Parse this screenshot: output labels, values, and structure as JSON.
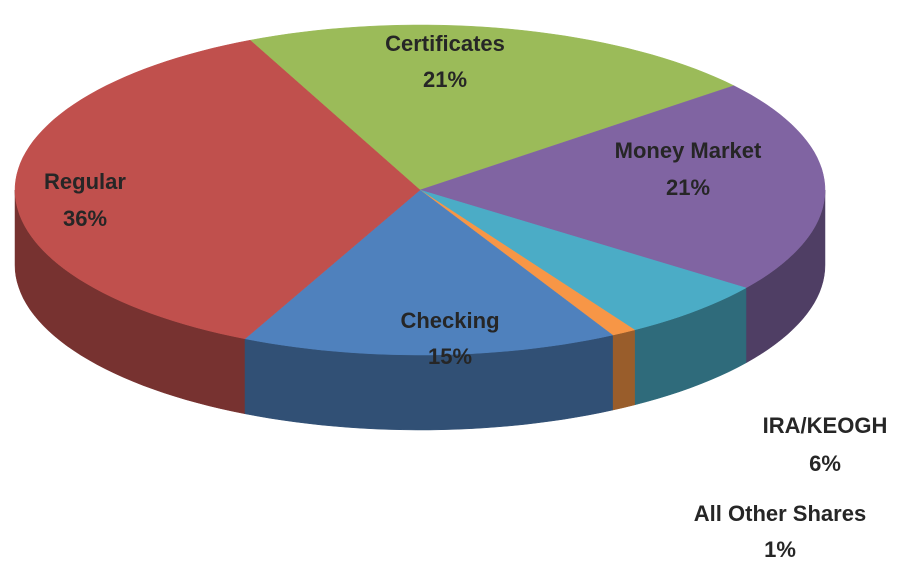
{
  "chart_data": {
    "type": "pie3d",
    "categories": [
      "Certificates",
      "Money Market",
      "IRA/KEOGH",
      "All Other Shares",
      "Checking",
      "Regular"
    ],
    "values": [
      21,
      21,
      6,
      1,
      15,
      36
    ],
    "value_labels": [
      "21%",
      "21%",
      "6%",
      "1%",
      "15%",
      "36%"
    ],
    "colors": [
      "#9bbb59",
      "#8064a2",
      "#4bacc6",
      "#f79646",
      "#4f81bd",
      "#c0504d"
    ]
  }
}
